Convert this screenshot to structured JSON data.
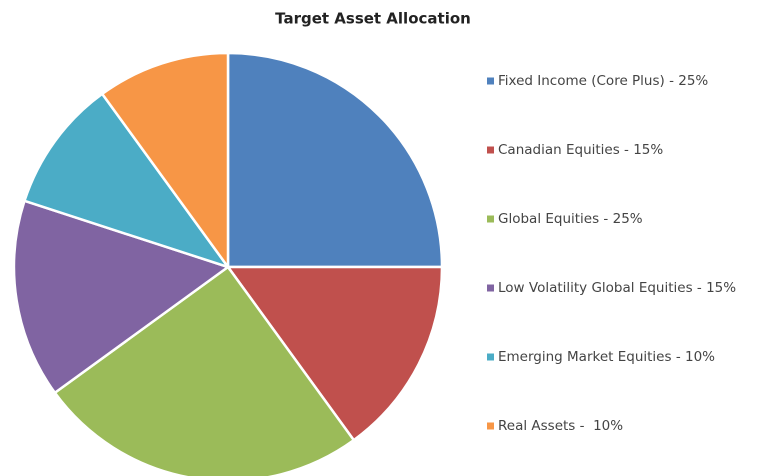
{
  "chart_data": {
    "type": "pie",
    "title": "Target Asset Allocation",
    "categories": [
      "Fixed Income (Core Plus) - 25%",
      "Canadian Equities - 15%",
      "Global Equities - 25%",
      "Low Volatility Global Equities - 15%",
      "Emerging Market Equities - 10%",
      "Real Assets -  10%"
    ],
    "values": [
      25,
      15,
      25,
      15,
      10,
      10
    ],
    "colors": [
      "#4f81bd",
      "#c0504d",
      "#9bbb59",
      "#8064a2",
      "#4bacc6",
      "#f79646"
    ],
    "legend": "right"
  }
}
